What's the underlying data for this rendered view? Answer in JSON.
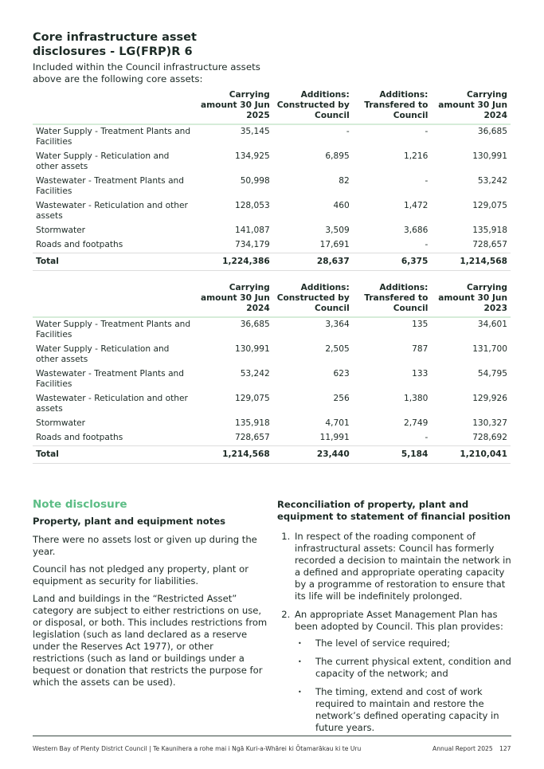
{
  "title": "Core infrastructure asset disclosures - LG(FRP)R 6",
  "intro": "Included within the Council infrastructure assets above are the following core assets:",
  "colors": {
    "accent": "#5cbd85",
    "text": "#1d2b26",
    "header_rule": "#d6ecd9"
  },
  "table1": {
    "headers": [
      "Carrying amount 30 Jun 2025",
      "Additions: Constructed by Council",
      "Additions: Transfered to Council",
      "Carrying amount 30 Jun 2024"
    ],
    "rows": [
      {
        "label": "Water Supply - Treatment Plants and Facilities",
        "values": [
          "35,145",
          "-",
          "-",
          "36,685"
        ]
      },
      {
        "label": "Water Supply - Reticulation and other assets",
        "values": [
          "134,925",
          "6,895",
          "1,216",
          "130,991"
        ]
      },
      {
        "label": "Wastewater - Treatment Plants and Facilities",
        "values": [
          "50,998",
          "82",
          "-",
          "53,242"
        ]
      },
      {
        "label": "Wastewater - Reticulation and other assets",
        "values": [
          "128,053",
          "460",
          "1,472",
          "129,075"
        ]
      },
      {
        "label": "Stormwater",
        "values": [
          "141,087",
          "3,509",
          "3,686",
          "135,918"
        ]
      },
      {
        "label": "Roads and footpaths",
        "values": [
          "734,179",
          "17,691",
          "-",
          "728,657"
        ]
      }
    ],
    "total": {
      "label": "Total",
      "values": [
        "1,224,386",
        "28,637",
        "6,375",
        "1,214,568"
      ]
    }
  },
  "table2": {
    "headers": [
      "Carrying amount 30 Jun 2024",
      "Additions: Constructed by Council",
      "Additions: Transfered to Council",
      "Carrying amount 30 Jun 2023"
    ],
    "rows": [
      {
        "label": "Water Supply - Treatment Plants and Facilities",
        "values": [
          "36,685",
          "3,364",
          "135",
          "34,601"
        ]
      },
      {
        "label": "Water Supply - Reticulation and other assets",
        "values": [
          "130,991",
          "2,505",
          "787",
          "131,700"
        ]
      },
      {
        "label": "Wastewater - Treatment Plants and Facilities",
        "values": [
          "53,242",
          "623",
          "133",
          "54,795"
        ]
      },
      {
        "label": "Wastewater - Reticulation and other assets",
        "values": [
          "129,075",
          "256",
          "1,380",
          "129,926"
        ]
      },
      {
        "label": "Stormwater",
        "values": [
          "135,918",
          "4,701",
          "2,749",
          "130,327"
        ]
      },
      {
        "label": "Roads and footpaths",
        "values": [
          "728,657",
          "11,991",
          "-",
          "728,692"
        ]
      }
    ],
    "total": {
      "label": "Total",
      "values": [
        "1,214,568",
        "23,440",
        "5,184",
        "1,210,041"
      ]
    }
  },
  "note": {
    "heading": "Note disclosure",
    "subheading": "Property, plant and equipment notes",
    "paragraphs": [
      "There were no assets lost or given up during the year.",
      "Council has not pledged any property, plant or equipment as security for liabilities.",
      "Land and buildings in the “Restricted Asset” category are subject to either restrictions on use, or disposal, or both. This includes restrictions from legislation (such as land declared as a reserve under the Reserves Act 1977), or other restrictions (such as land or buildings under a bequest or donation that restricts the purpose for which the assets can be used)."
    ]
  },
  "reconciliation": {
    "heading": "Reconciliation of property, plant and equipment to statement of financial position",
    "items": [
      "In respect of the roading component of infrastructural assets: Council has formerly recorded a decision to maintain the network in a defined and appropriate operating capacity by a programme of restoration to ensure that its life will be indefinitely prolonged.",
      "An appropriate Asset Management Plan has been adopted by Council. This plan provides:"
    ],
    "bullets": [
      "The level of service required;",
      "The current physical extent, condition and capacity of the network; and",
      "The timing, extend and cost of work required to maintain and restore the network’s defined operating capacity in future years."
    ]
  },
  "footer": {
    "left": "Western Bay of Plenty District Council | Te Kaunihera a rohe mai i Ngā Kuri-a-Whārei ki Ōtamarākau ki te Uru",
    "report": "Annual Report 2025",
    "page": "127"
  }
}
